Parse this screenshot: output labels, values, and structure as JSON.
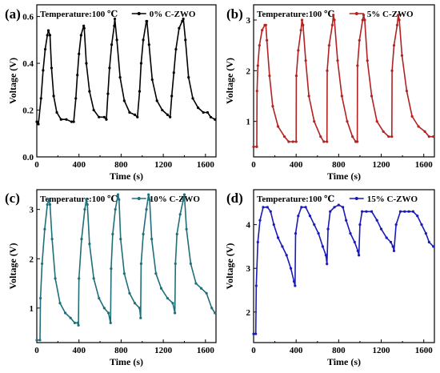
{
  "chart_data": [
    {
      "type": "line",
      "panel_label": "(a)",
      "legend_placement": "top",
      "annotation": "Temperature:100 ℃",
      "xlabel": "Time (s)",
      "ylabel": "Voltage (V)",
      "xlim": [
        0,
        1700
      ],
      "ylim": [
        0,
        0.65
      ],
      "xticks": [
        0,
        400,
        800,
        1200,
        1600
      ],
      "yticks": [
        0.0,
        0.2,
        0.4,
        0.6
      ],
      "ytick_labels": [
        "0.0",
        "0.2",
        "0.4",
        "0.6"
      ],
      "grid": false,
      "series": [
        {
          "name": "0% C-ZWO",
          "color": "#000000",
          "x": [
            0,
            15,
            40,
            60,
            80,
            100,
            110,
            125,
            140,
            160,
            190,
            230,
            280,
            330,
            350,
            370,
            385,
            400,
            420,
            445,
            450,
            470,
            500,
            540,
            590,
            640,
            660,
            675,
            690,
            710,
            735,
            740,
            760,
            790,
            830,
            880,
            930,
            955,
            975,
            990,
            1010,
            1040,
            1045,
            1065,
            1095,
            1140,
            1190,
            1240,
            1265,
            1280,
            1300,
            1320,
            1350,
            1380,
            1390,
            1410,
            1440,
            1480,
            1530,
            1580,
            1620,
            1650,
            1690
          ],
          "values": [
            0.15,
            0.14,
            0.25,
            0.37,
            0.46,
            0.52,
            0.54,
            0.52,
            0.38,
            0.26,
            0.19,
            0.16,
            0.16,
            0.15,
            0.15,
            0.25,
            0.35,
            0.44,
            0.52,
            0.56,
            0.55,
            0.4,
            0.28,
            0.2,
            0.17,
            0.17,
            0.16,
            0.27,
            0.38,
            0.48,
            0.56,
            0.59,
            0.5,
            0.34,
            0.24,
            0.19,
            0.18,
            0.17,
            0.28,
            0.4,
            0.5,
            0.58,
            0.58,
            0.48,
            0.33,
            0.24,
            0.2,
            0.18,
            0.17,
            0.26,
            0.36,
            0.46,
            0.55,
            0.58,
            0.59,
            0.5,
            0.34,
            0.25,
            0.21,
            0.19,
            0.19,
            0.17,
            0.16
          ]
        }
      ]
    },
    {
      "type": "line",
      "panel_label": "(b)",
      "legend_placement": "top",
      "annotation": "Temperature:100 ℃",
      "xlabel": "Time (s)",
      "ylabel": "Voltage (V)",
      "xlim": [
        0,
        1700
      ],
      "ylim": [
        0.3,
        3.3
      ],
      "xticks": [
        0,
        400,
        800,
        1200,
        1600
      ],
      "yticks": [
        1,
        2,
        3
      ],
      "ytick_labels": [
        "1",
        "2",
        "3"
      ],
      "grid": false,
      "series": [
        {
          "name": "5% C-ZWO",
          "color": "#b22222",
          "x": [
            0,
            30,
            32,
            40,
            55,
            80,
            105,
            115,
            125,
            150,
            180,
            230,
            290,
            330,
            370,
            400,
            402,
            420,
            445,
            455,
            465,
            490,
            520,
            570,
            630,
            660,
            690,
            692,
            710,
            740,
            750,
            760,
            790,
            830,
            880,
            930,
            960,
            975,
            977,
            995,
            1025,
            1035,
            1045,
            1070,
            1110,
            1160,
            1220,
            1270,
            1300,
            1302,
            1320,
            1350,
            1360,
            1370,
            1395,
            1440,
            1490,
            1550,
            1610,
            1650,
            1690
          ],
          "values": [
            0.5,
            0.5,
            1.6,
            2.1,
            2.5,
            2.8,
            2.9,
            2.9,
            2.6,
            1.9,
            1.3,
            0.9,
            0.7,
            0.6,
            0.6,
            0.6,
            1.9,
            2.4,
            2.8,
            3.0,
            2.9,
            2.2,
            1.5,
            1.0,
            0.7,
            0.6,
            0.6,
            2.0,
            2.5,
            2.9,
            3.1,
            3.0,
            2.2,
            1.5,
            1.0,
            0.7,
            0.6,
            0.6,
            2.1,
            2.6,
            3.0,
            3.1,
            3.0,
            2.2,
            1.5,
            1.0,
            0.8,
            0.7,
            0.7,
            2.0,
            2.5,
            2.9,
            3.1,
            3.0,
            2.3,
            1.6,
            1.1,
            0.9,
            0.8,
            0.7,
            0.7
          ]
        }
      ]
    },
    {
      "type": "line",
      "panel_label": "(c)",
      "legend_placement": "top",
      "annotation": "Temperature:100 ℃",
      "xlabel": "Time (s)",
      "ylabel": "Voltage (V)",
      "xlim": [
        0,
        1700
      ],
      "ylim": [
        0.3,
        3.4
      ],
      "xticks": [
        0,
        400,
        800,
        1200,
        1600
      ],
      "yticks": [
        1,
        2,
        3
      ],
      "ytick_labels": [
        "1",
        "2",
        "3"
      ],
      "grid": false,
      "series": [
        {
          "name": "10% C-ZWO",
          "color": "#1f6f7a",
          "x": [
            0,
            30,
            35,
            50,
            75,
            100,
            115,
            125,
            145,
            175,
            220,
            270,
            320,
            360,
            390,
            395,
            400,
            425,
            455,
            470,
            480,
            500,
            540,
            590,
            640,
            680,
            700,
            705,
            720,
            745,
            770,
            780,
            795,
            830,
            880,
            930,
            975,
            985,
            990,
            1010,
            1040,
            1060,
            1070,
            1090,
            1130,
            1180,
            1240,
            1290,
            1310,
            1315,
            1330,
            1360,
            1390,
            1400,
            1420,
            1460,
            1510,
            1560,
            1610,
            1660,
            1690
          ],
          "values": [
            0.35,
            0.35,
            1.2,
            1.9,
            2.6,
            3.1,
            3.2,
            3.1,
            2.4,
            1.6,
            1.1,
            0.9,
            0.8,
            0.7,
            0.7,
            0.65,
            1.6,
            2.4,
            3.0,
            3.2,
            3.1,
            2.3,
            1.6,
            1.2,
            1.0,
            0.9,
            0.7,
            1.8,
            2.5,
            3.0,
            3.3,
            3.2,
            2.4,
            1.7,
            1.3,
            1.1,
            1.0,
            0.8,
            1.9,
            2.5,
            3.0,
            3.3,
            3.2,
            2.4,
            1.7,
            1.4,
            1.2,
            1.1,
            0.9,
            1.9,
            2.5,
            2.9,
            3.2,
            3.3,
            2.6,
            1.9,
            1.5,
            1.4,
            1.3,
            1.0,
            0.9
          ]
        }
      ]
    },
    {
      "type": "line",
      "panel_label": "(d)",
      "legend_placement": "top",
      "annotation": "Temperature:100 ℃",
      "xlabel": "Time (s)",
      "ylabel": "Voltage (V)",
      "xlim": [
        0,
        1700
      ],
      "ylim": [
        1.3,
        4.8
      ],
      "xticks": [
        0,
        400,
        800,
        1200,
        1600
      ],
      "yticks": [
        2,
        3,
        4
      ],
      "ytick_labels": [
        "2",
        "3",
        "4"
      ],
      "grid": false,
      "series": [
        {
          "name": "15% C-ZWO",
          "color": "#1a1ab8",
          "x": [
            0,
            20,
            25,
            40,
            60,
            90,
            130,
            160,
            190,
            230,
            270,
            310,
            350,
            380,
            390,
            395,
            420,
            450,
            490,
            530,
            570,
            610,
            650,
            680,
            690,
            700,
            720,
            760,
            800,
            840,
            870,
            910,
            950,
            980,
            990,
            1000,
            1020,
            1060,
            1110,
            1160,
            1200,
            1250,
            1290,
            1310,
            1320,
            1340,
            1380,
            1420,
            1460,
            1500,
            1540,
            1580,
            1620,
            1650,
            1690
          ],
          "values": [
            1.5,
            1.5,
            2.6,
            3.6,
            4.1,
            4.4,
            4.4,
            4.3,
            4.0,
            3.7,
            3.5,
            3.3,
            3.0,
            2.7,
            2.6,
            3.8,
            4.2,
            4.4,
            4.4,
            4.2,
            4.0,
            3.8,
            3.5,
            3.3,
            3.1,
            3.9,
            4.3,
            4.4,
            4.45,
            4.4,
            4.1,
            3.8,
            3.6,
            3.4,
            3.3,
            4.0,
            4.3,
            4.3,
            4.3,
            4.1,
            3.9,
            3.7,
            3.6,
            3.5,
            3.4,
            4.0,
            4.3,
            4.3,
            4.3,
            4.3,
            4.2,
            4.0,
            3.8,
            3.6,
            3.5
          ]
        }
      ]
    }
  ]
}
